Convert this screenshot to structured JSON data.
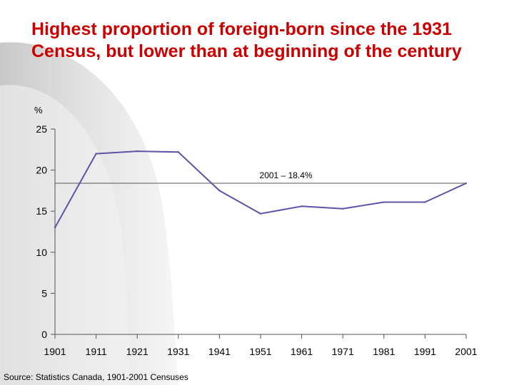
{
  "title": "Highest proportion of foreign-born since the 1931 Census, but lower than at beginning of the century",
  "source": "Source: Statistics Canada, 1901-2001 Censuses",
  "colors": {
    "title": "#cc0000",
    "line": "#5c54a4",
    "reference_line": "#555555",
    "axis": "#555555",
    "background_swoosh": "#dcdcdc"
  },
  "chart_data": {
    "type": "line",
    "title": "",
    "xlabel": "",
    "ylabel": "%",
    "ylim": [
      0,
      25
    ],
    "yticks": [
      0,
      5,
      10,
      15,
      20,
      25
    ],
    "categories": [
      "1901",
      "1911",
      "1921",
      "1931",
      "1941",
      "1951",
      "1961",
      "1971",
      "1981",
      "1991",
      "2001"
    ],
    "series": [
      {
        "values": [
          13.0,
          22.0,
          22.3,
          22.2,
          17.5,
          14.7,
          15.6,
          15.3,
          16.1,
          16.1,
          18.4
        ]
      }
    ],
    "reference_line": {
      "value": 18.4,
      "label": "2001 – 18.4%"
    },
    "grid": false,
    "legend": "none"
  }
}
